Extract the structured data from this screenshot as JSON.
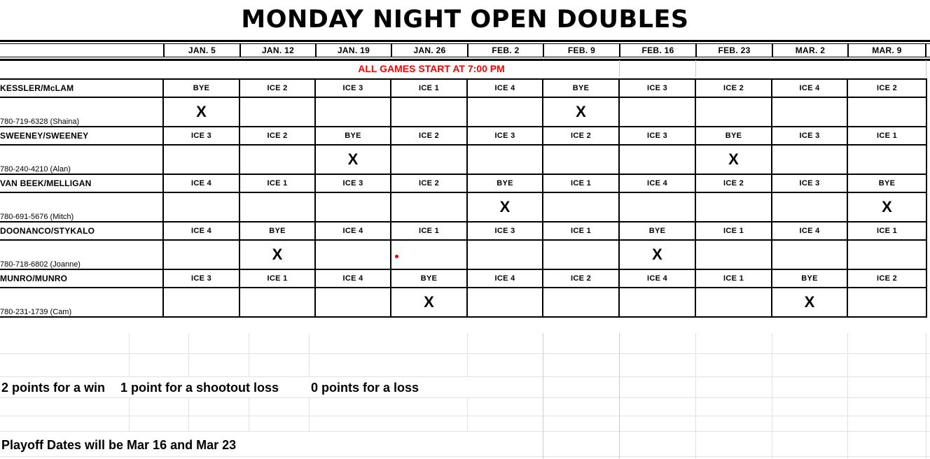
{
  "title": "MONDAY NIGHT OPEN DOUBLES",
  "notice": "ALL GAMES START AT 7:00 PM",
  "dates": [
    "JAN. 5",
    "JAN. 12",
    "JAN. 19",
    "JAN. 26",
    "FEB. 2",
    "FEB. 9",
    "FEB. 16",
    "FEB. 23",
    "MAR. 2",
    "MAR. 9"
  ],
  "teams": [
    {
      "name": "KESSLER/McLAM",
      "phone": "780-719-6328 (Shaina)",
      "schedule": [
        "BYE",
        "ICE 2",
        "ICE 3",
        "ICE 1",
        "ICE 4",
        "BYE",
        "ICE 3",
        "ICE 2",
        "ICE 4",
        "ICE 2"
      ],
      "marks": [
        "X",
        "",
        "",
        "",
        "",
        "X",
        "",
        "",
        "",
        ""
      ]
    },
    {
      "name": "SWEENEY/SWEENEY",
      "phone": "780-240-4210 (Alan)",
      "schedule": [
        "ICE 3",
        "ICE 2",
        "BYE",
        "ICE 2",
        "ICE 3",
        "ICE 2",
        "ICE 3",
        "BYE",
        "ICE 3",
        "ICE 1"
      ],
      "marks": [
        "",
        "",
        "X",
        "",
        "",
        "",
        "",
        "X",
        "",
        ""
      ]
    },
    {
      "name": "VAN BEEK/MELLIGAN",
      "phone": "780-691-5676 (Mitch)",
      "schedule": [
        "ICE 4",
        "ICE 1",
        "ICE 3",
        "ICE 2",
        "BYE",
        "ICE 1",
        "ICE 4",
        "ICE 2",
        "ICE 3",
        "BYE"
      ],
      "marks": [
        "",
        "",
        "",
        "",
        "X",
        "",
        "",
        "",
        "",
        "X"
      ]
    },
    {
      "name": "DOONANCO/STYKALO",
      "phone": "780-718-6802 (Joanne)",
      "schedule": [
        "ICE 4",
        "BYE",
        "ICE 4",
        "ICE 1",
        "ICE 3",
        "ICE 1",
        "BYE",
        "ICE 1",
        "ICE 4",
        "ICE 1"
      ],
      "marks": [
        "",
        "X",
        "",
        "",
        "",
        "",
        "X",
        "",
        "",
        ""
      ]
    },
    {
      "name": "MUNRO/MUNRO",
      "phone": "780-231-1739 (Cam)",
      "schedule": [
        "ICE 3",
        "ICE 1",
        "ICE 4",
        "BYE",
        "ICE 4",
        "ICE 2",
        "ICE 4",
        "ICE 1",
        "BYE",
        "ICE 2"
      ],
      "marks": [
        "",
        "",
        "",
        "X",
        "",
        "",
        "",
        "",
        "X",
        ""
      ]
    }
  ],
  "scoring": {
    "win": "2 points for a win",
    "shootout": "1 point for a shootout loss",
    "loss": "0 points for a loss"
  },
  "playoff_note": "Playoff Dates will be Mar 16 and Mar 23",
  "colors": {
    "notice_red": "#FF0000",
    "border_black": "#000000",
    "faint_grid": "#E2E2E2"
  }
}
